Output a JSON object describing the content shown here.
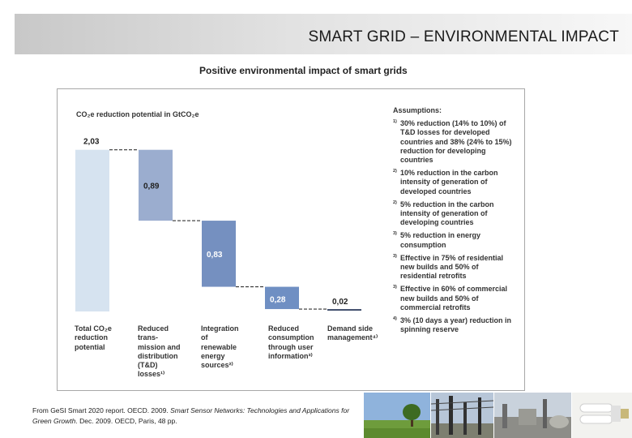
{
  "header": {
    "title": "SMART GRID – ENVIRONMENTAL IMPACT"
  },
  "figure": {
    "title": "Positive environmental impact of smart grids"
  },
  "chart_data": {
    "type": "bar",
    "subtype": "waterfall",
    "title": "Positive environmental impact of smart grids",
    "ylabel": "CO₂e reduction potential in GtCO₂e",
    "categories": [
      "Total CO₂e reduction potential",
      "Reduced trans-mission and distribution (T&D) losses¹⁾",
      "Integration of renewable energy sources²⁾",
      "Reduced consumption through user information³⁾",
      "Demand side management⁴⁾"
    ],
    "category_label_lines": [
      [
        "Total CO₂e",
        "reduction",
        "potential"
      ],
      [
        "Reduced",
        "trans-",
        "mission and",
        "distribution",
        "(T&D)",
        "losses¹⁾"
      ],
      [
        "Integration",
        "of",
        "renewable",
        "energy",
        "sources²⁾"
      ],
      [
        "Reduced",
        "consumption",
        "through user",
        "information³⁾"
      ],
      [
        "Demand side",
        "management⁴⁾"
      ]
    ],
    "value_labels": [
      "2,03",
      "0,89",
      "0,83",
      "0,28",
      "0,02"
    ],
    "values": [
      2.03,
      0.89,
      0.83,
      0.28,
      0.02
    ],
    "bases": [
      0,
      1.14,
      0.31,
      0.03,
      0.01
    ],
    "ylim": [
      0,
      2.2
    ],
    "grid": false,
    "colors": [
      "#d6e3f0",
      "#9badcf",
      "#7590c0",
      "#6f8fc3",
      "#404e6c"
    ],
    "connector_color": "#333333"
  },
  "assumptions": {
    "heading": "Assumptions:",
    "items": [
      {
        "marker": "1)",
        "text": "30% reduction (14% to 10%) of T&D losses for developed countries and 38% (24% to 15%) reduction for developing countries"
      },
      {
        "marker": "2)",
        "text": "10% reduction in the carbon intensity of generation of developed countries"
      },
      {
        "marker": "2)",
        "text": "5% reduction in the carbon intensity of generation of developing countries"
      },
      {
        "marker": "3)",
        "text": "5% reduction in energy consumption"
      },
      {
        "marker": "3)",
        "text": "Effective in 75% of residential new builds and 50% of residential retrofits"
      },
      {
        "marker": "3)",
        "text": "Effective in 60% of commercial new builds and 50% of commercial retrofits"
      },
      {
        "marker": "4)",
        "text": "3% (10 days a year) reduction in spinning reserve"
      }
    ]
  },
  "source": {
    "prefix": "From GeSI Smart 2020 report. OECD. 2009. ",
    "italic": "Smart Sensor Networks: Technologies and Applications for Green Growth",
    "suffix": ". Dec. 2009. OECD, Paris, 48 pp."
  },
  "photos": [
    {
      "name": "tree-landscape-photo"
    },
    {
      "name": "substation-photo"
    },
    {
      "name": "industrial-plant-photo"
    },
    {
      "name": "energy-saving-bulb-photo"
    }
  ]
}
